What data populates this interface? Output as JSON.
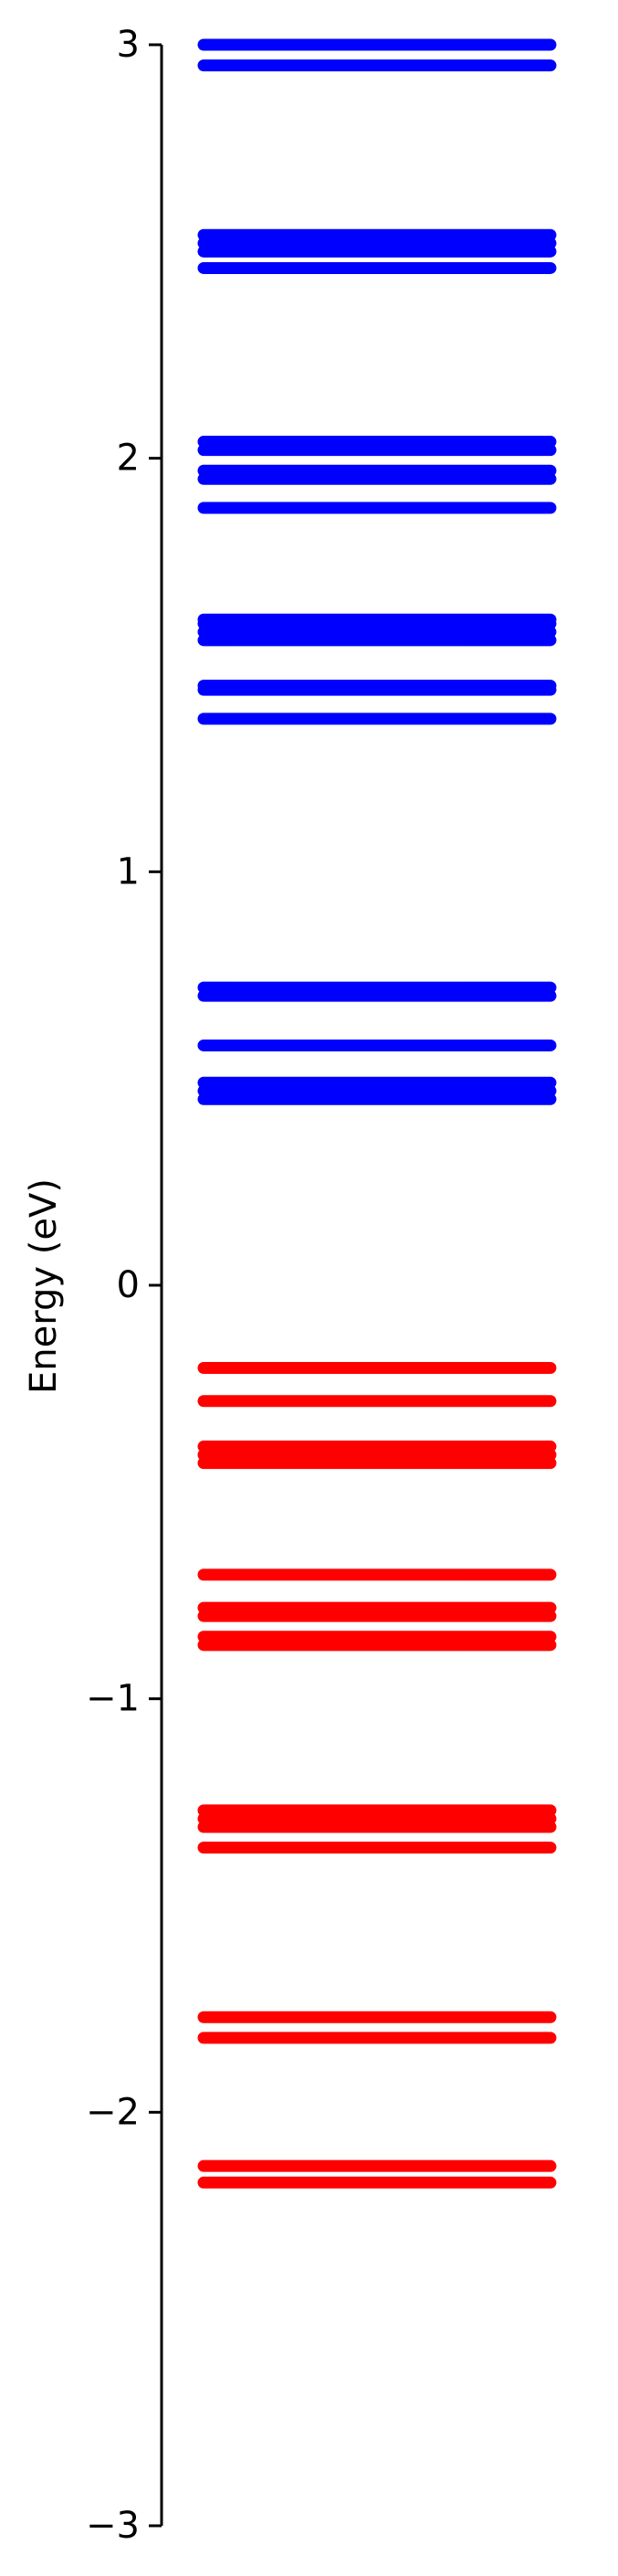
{
  "chart_data": {
    "type": "energy-level",
    "xlabel": "",
    "ylabel": "Energy (eV)",
    "ylim": [
      -3,
      3
    ],
    "yticks": [
      -3,
      -2,
      -1,
      0,
      1,
      2,
      3
    ],
    "ytick_labels": [
      "−3",
      "−2",
      "−1",
      "0",
      "1",
      "2",
      "3"
    ],
    "grid": false,
    "legend": "none",
    "series": [
      {
        "color": "#0000ff",
        "values": [
          0.45,
          0.47,
          0.49,
          0.58,
          0.7,
          0.72,
          1.37,
          1.44,
          1.45,
          1.56,
          1.58,
          1.6,
          1.61,
          1.88,
          1.95,
          1.97,
          2.02,
          2.04,
          2.46,
          2.5,
          2.52,
          2.54,
          2.95,
          3.0
        ]
      },
      {
        "color": "#ff0000",
        "values": [
          -0.2,
          -0.28,
          -0.39,
          -0.41,
          -0.43,
          -0.7,
          -0.78,
          -0.8,
          -0.85,
          -0.87,
          -1.27,
          -1.29,
          -1.31,
          -1.36,
          -1.77,
          -1.82,
          -2.13,
          -2.17
        ]
      }
    ]
  }
}
